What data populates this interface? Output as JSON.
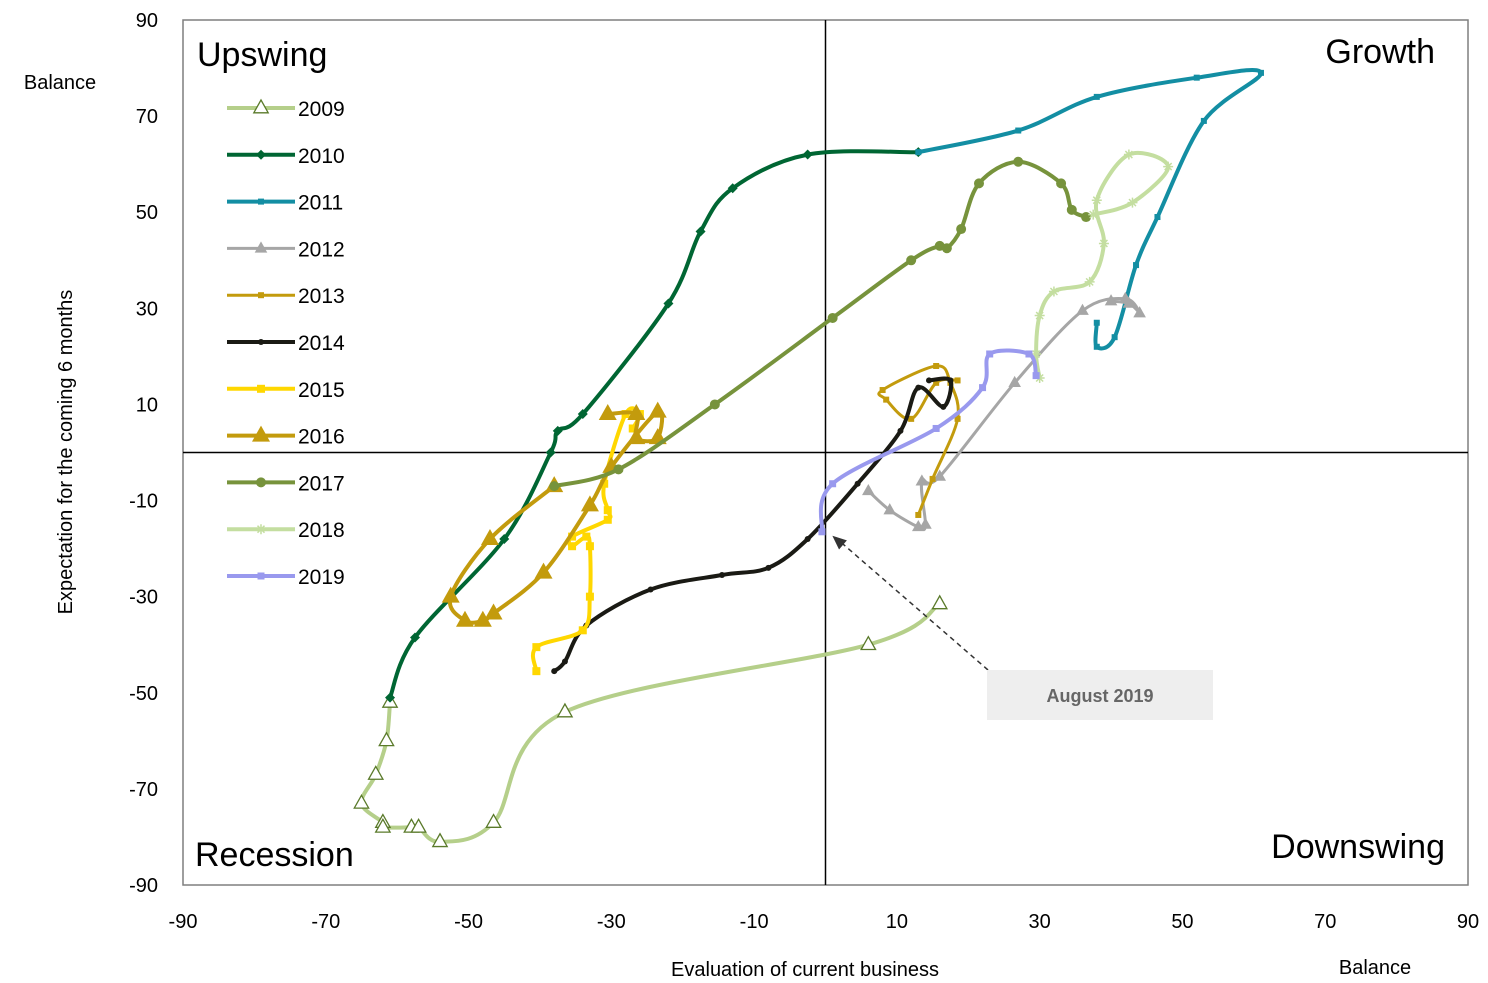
{
  "chart_data": {
    "type": "line",
    "xlabel": "Evaluation  of current business",
    "xunit": "Balance",
    "ylabel": "Expectation for  the coming 6 months",
    "yunit": "Balance",
    "xlim": [
      -90,
      90
    ],
    "ylim": [
      -90,
      90
    ],
    "xticks": [
      "-90",
      "-70",
      "-50",
      "-30",
      "-10",
      "10",
      "30",
      "50",
      "70",
      "90"
    ],
    "yticks": [
      "90",
      "70",
      "50",
      "30",
      "10",
      "-10",
      "-30",
      "-50",
      "-70",
      "-90"
    ],
    "quadrants": {
      "top_left": "Upswing",
      "top_right": "Growth",
      "bottom_left": "Recession",
      "bottom_right": "Downswing"
    },
    "annotation": {
      "text": "August 2019",
      "point": [
        0.4,
        -16.5
      ],
      "box_center": [
        38,
        -50
      ]
    },
    "legend_position": "left",
    "colors": {
      "grid": "#000000",
      "annotation_box": "#eeeeee",
      "annotation_text": "#666666"
    },
    "series": [
      {
        "name": "2009",
        "color": "#b5cf8a",
        "marker": "triangle-open",
        "width": 4,
        "marker_size": 8,
        "points": [
          [
            -61,
            -52
          ],
          [
            -61.5,
            -60
          ],
          [
            -63,
            -67
          ],
          [
            -65,
            -73
          ],
          [
            -62,
            -77
          ],
          [
            -62,
            -78
          ],
          [
            -58,
            -78
          ],
          [
            -57,
            -78
          ],
          [
            -54,
            -81
          ],
          [
            -46.5,
            -77
          ],
          [
            -36.5,
            -54
          ],
          [
            6,
            -40
          ],
          [
            16,
            -31.5
          ]
        ]
      },
      {
        "name": "2010",
        "color": "#006633",
        "marker": "diamond",
        "width": 4,
        "marker_size": 5,
        "points": [
          [
            -61,
            -51
          ],
          [
            -57.5,
            -38.5
          ],
          [
            -45,
            -18
          ],
          [
            -38.5,
            0
          ],
          [
            -37.5,
            4.5
          ],
          [
            -34,
            8
          ],
          [
            -22,
            31
          ],
          [
            -17.5,
            46
          ],
          [
            -13,
            55
          ],
          [
            -2.5,
            62
          ],
          [
            13,
            62.5
          ]
        ]
      },
      {
        "name": "2011",
        "color": "#138ea3",
        "marker": "square",
        "width": 4,
        "marker_size": 6,
        "points": [
          [
            13,
            62.5
          ],
          [
            27,
            67
          ],
          [
            38,
            74
          ],
          [
            52,
            78
          ],
          [
            61,
            79
          ],
          [
            53,
            69
          ],
          [
            46.5,
            49
          ],
          [
            43.5,
            39
          ],
          [
            40.5,
            24
          ],
          [
            38,
            22
          ],
          [
            38,
            27
          ]
        ]
      },
      {
        "name": "2012",
        "color": "#a6a6a6",
        "marker": "triangle",
        "width": 3,
        "marker_size": 7,
        "points": [
          [
            6,
            -8
          ],
          [
            9,
            -12
          ],
          [
            13,
            -15.5
          ],
          [
            14,
            -15
          ],
          [
            13.5,
            -6
          ],
          [
            16,
            -5
          ],
          [
            26.5,
            14.5
          ],
          [
            36,
            29.5
          ],
          [
            42,
            32
          ],
          [
            44,
            29
          ],
          [
            42.5,
            31
          ],
          [
            40,
            31.5
          ]
        ]
      },
      {
        "name": "2013",
        "color": "#c39b0d",
        "marker": "square",
        "width": 3,
        "marker_size": 6,
        "points": [
          [
            13,
            -13
          ],
          [
            15,
            -5.5
          ],
          [
            18.5,
            7
          ],
          [
            17.5,
            14.5
          ],
          [
            15.5,
            18
          ],
          [
            8,
            13
          ],
          [
            8.5,
            11
          ],
          [
            12,
            7
          ],
          [
            15.5,
            14.5
          ],
          [
            18.5,
            15
          ]
        ]
      },
      {
        "name": "2014",
        "color": "#1a1a14",
        "marker": "circle",
        "width": 4,
        "marker_size": 4,
        "points": [
          [
            -38,
            -45.5
          ],
          [
            -36.5,
            -43.5
          ],
          [
            -33.5,
            -36
          ],
          [
            -24.5,
            -28.5
          ],
          [
            -14.5,
            -25.5
          ],
          [
            -8,
            -24
          ],
          [
            -2.5,
            -18
          ],
          [
            4.5,
            -6.5
          ],
          [
            10.5,
            4.5
          ],
          [
            13,
            13.5
          ],
          [
            16.5,
            9.5
          ],
          [
            17.5,
            15
          ],
          [
            14.5,
            15
          ]
        ]
      },
      {
        "name": "2015",
        "color": "#ffd700",
        "marker": "square",
        "width": 4,
        "marker_size": 8,
        "points": [
          [
            -40.5,
            -45.5
          ],
          [
            -40.5,
            -40.5
          ],
          [
            -34,
            -37
          ],
          [
            -33,
            -30
          ],
          [
            -33,
            -19.5
          ],
          [
            -33.5,
            -17.5
          ],
          [
            -35.5,
            -19.5
          ],
          [
            -35.5,
            -17.5
          ],
          [
            -30.5,
            -14
          ],
          [
            -30.5,
            -12
          ],
          [
            -31,
            -6.5
          ],
          [
            -28,
            8
          ],
          [
            -26,
            8
          ],
          [
            -27,
            5
          ]
        ]
      },
      {
        "name": "2016",
        "color": "#c39b0d",
        "marker": "triangle",
        "width": 4,
        "marker_size": 10,
        "points": [
          [
            -30.5,
            8
          ],
          [
            -26.5,
            8
          ],
          [
            -26.5,
            3
          ],
          [
            -23.5,
            3
          ],
          [
            -23.5,
            8.5
          ],
          [
            -30,
            -3
          ],
          [
            -33,
            -11
          ],
          [
            -39.5,
            -25
          ],
          [
            -46.5,
            -33.5
          ],
          [
            -48,
            -35
          ],
          [
            -50.5,
            -35
          ],
          [
            -52.5,
            -30
          ],
          [
            -47,
            -18
          ],
          [
            -38,
            -7
          ]
        ]
      },
      {
        "name": "2017",
        "color": "#77933c",
        "marker": "circle",
        "width": 4,
        "marker_size": 8,
        "points": [
          [
            -38,
            -7
          ],
          [
            -29,
            -3.5
          ],
          [
            -15.5,
            10
          ],
          [
            1,
            28
          ],
          [
            12,
            40
          ],
          [
            16,
            43
          ],
          [
            17,
            42.5
          ],
          [
            19,
            46.5
          ],
          [
            21.5,
            56
          ],
          [
            27,
            60.5
          ],
          [
            33,
            56
          ],
          [
            34.5,
            50.5
          ],
          [
            36.5,
            49
          ]
        ]
      },
      {
        "name": "2018",
        "color": "#c4dea0",
        "marker": "star",
        "width": 4,
        "marker_size": 5,
        "points": [
          [
            30,
            15.5
          ],
          [
            29.5,
            20.5
          ],
          [
            30,
            28.5
          ],
          [
            32,
            33.5
          ],
          [
            37,
            35.5
          ],
          [
            39,
            43.5
          ],
          [
            38,
            52.5
          ],
          [
            42.5,
            62
          ],
          [
            48,
            59.5
          ],
          [
            43,
            52
          ],
          [
            37.5,
            49.5
          ]
        ]
      },
      {
        "name": "2019",
        "color": "#9999ee",
        "marker": "square",
        "width": 4,
        "marker_size": 7,
        "points": [
          [
            -0.5,
            -16.5
          ],
          [
            1,
            -6.5
          ],
          [
            15.5,
            5
          ],
          [
            22,
            13.5
          ],
          [
            23,
            20.5
          ],
          [
            28.5,
            20.5
          ],
          [
            29.5,
            16
          ]
        ]
      }
    ]
  }
}
